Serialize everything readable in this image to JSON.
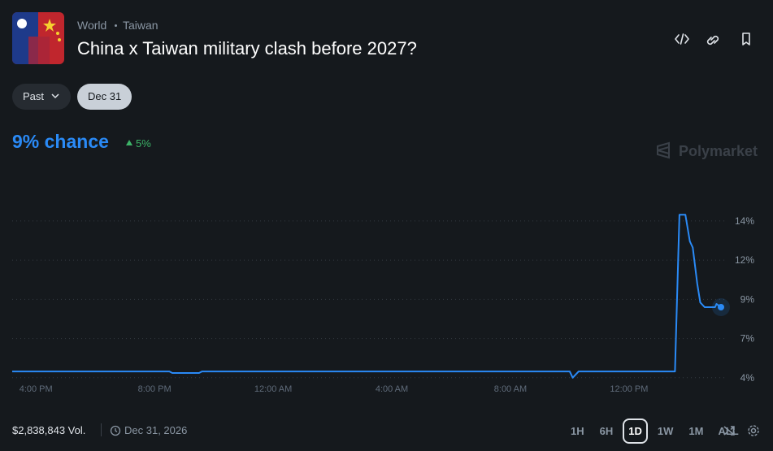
{
  "header": {
    "breadcrumb": [
      "World",
      "Taiwan"
    ],
    "title": "China x Taiwan military clash before 2027?"
  },
  "date_filters": [
    "Past",
    "Dec 31"
  ],
  "probability": {
    "label": "9% chance",
    "change": "5%"
  },
  "brand": "Polymarket",
  "chart_data": {
    "type": "line",
    "x": [
      15.2,
      20.5,
      20.6,
      21.5,
      21.6,
      34.0,
      34.1,
      34.3,
      37.55,
      37.7,
      37.9,
      38.05,
      38.15,
      38.3,
      38.4,
      38.55,
      38.9,
      38.95,
      39.1
    ],
    "values": [
      4.4,
      4.4,
      4.3,
      4.3,
      4.4,
      4.4,
      4.0,
      4.4,
      4.4,
      14.4,
      14.4,
      12.7,
      12.3,
      10.0,
      8.8,
      8.5,
      8.5,
      8.7,
      8.5
    ],
    "color": "#2a8af6",
    "xlim": [
      15.2,
      39.1
    ],
    "ylim": [
      2.9,
      16.9
    ],
    "xticks": [
      {
        "value": 16,
        "label": "4:00 PM"
      },
      {
        "value": 20,
        "label": "8:00 PM"
      },
      {
        "value": 24,
        "label": "12:00 AM"
      },
      {
        "value": 28,
        "label": "4:00 AM"
      },
      {
        "value": 32,
        "label": "8:00 AM"
      },
      {
        "value": 36,
        "label": "12:00 PM"
      }
    ],
    "yticks": [
      {
        "value": 4,
        "label": "4%"
      },
      {
        "value": 6.5,
        "label": "7%"
      },
      {
        "value": 9,
        "label": "9%"
      },
      {
        "value": 11.5,
        "label": "12%"
      },
      {
        "value": 14,
        "label": "14%"
      }
    ],
    "grid": true
  },
  "footer": {
    "volume": "$2,838,843 Vol.",
    "end_date": "Dec 31, 2026",
    "ranges": [
      "1H",
      "6H",
      "1D",
      "1W",
      "1M",
      "ALL"
    ]
  }
}
